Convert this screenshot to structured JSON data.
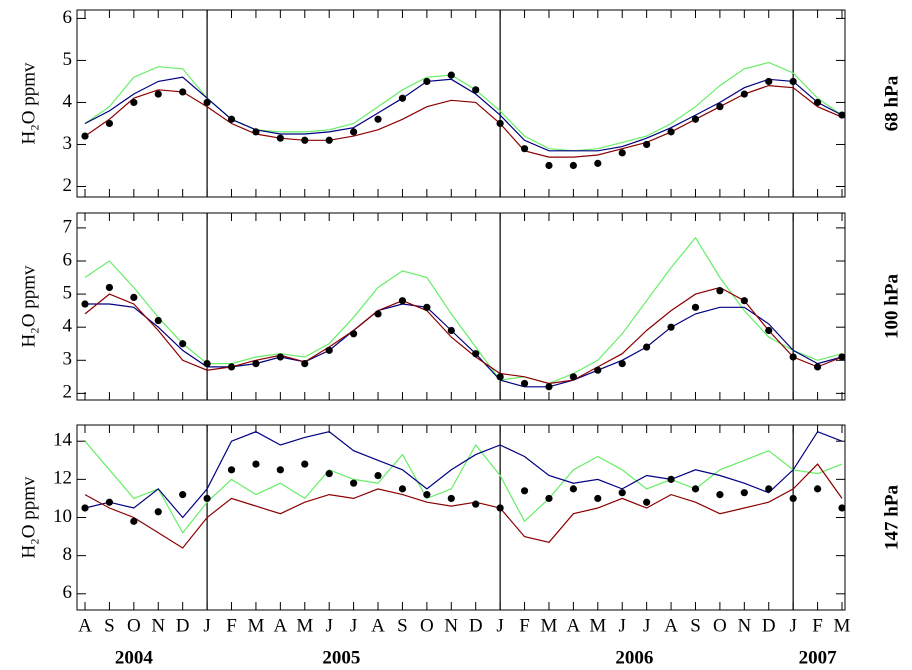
{
  "chart_data": {
    "type": "line",
    "x": [
      "2004-08",
      "2004-09",
      "2004-10",
      "2004-11",
      "2004-12",
      "2005-01",
      "2005-02",
      "2005-03",
      "2005-04",
      "2005-05",
      "2005-06",
      "2005-07",
      "2005-08",
      "2005-09",
      "2005-10",
      "2005-11",
      "2005-12",
      "2006-01",
      "2006-02",
      "2006-03",
      "2006-04",
      "2006-05",
      "2006-06",
      "2006-07",
      "2006-08",
      "2006-09",
      "2006-10",
      "2006-11",
      "2006-12",
      "2007-01",
      "2007-02",
      "2007-03"
    ],
    "xticks": [
      {
        "value": "2004-08",
        "label": "A"
      },
      {
        "value": "2004-09",
        "label": "S"
      },
      {
        "value": "2004-10",
        "label": "O"
      },
      {
        "value": "2004-11",
        "label": "N"
      },
      {
        "value": "2004-12",
        "label": "D"
      },
      {
        "value": "2005-01",
        "label": "J"
      },
      {
        "value": "2005-02",
        "label": "F"
      },
      {
        "value": "2005-03",
        "label": "M"
      },
      {
        "value": "2005-04",
        "label": "A"
      },
      {
        "value": "2005-05",
        "label": "M"
      },
      {
        "value": "2005-06",
        "label": "J"
      },
      {
        "value": "2005-07",
        "label": "J"
      },
      {
        "value": "2005-08",
        "label": "A"
      },
      {
        "value": "2005-09",
        "label": "S"
      },
      {
        "value": "2005-10",
        "label": "O"
      },
      {
        "value": "2005-11",
        "label": "N"
      },
      {
        "value": "2005-12",
        "label": "D"
      },
      {
        "value": "2006-01",
        "label": "J"
      },
      {
        "value": "2006-02",
        "label": "F"
      },
      {
        "value": "2006-03",
        "label": "M"
      },
      {
        "value": "2006-04",
        "label": "A"
      },
      {
        "value": "2006-05",
        "label": "M"
      },
      {
        "value": "2006-06",
        "label": "J"
      },
      {
        "value": "2006-07",
        "label": "J"
      },
      {
        "value": "2006-08",
        "label": "A"
      },
      {
        "value": "2006-09",
        "label": "S"
      },
      {
        "value": "2006-10",
        "label": "O"
      },
      {
        "value": "2006-11",
        "label": "N"
      },
      {
        "value": "2006-12",
        "label": "D"
      },
      {
        "value": "2007-01",
        "label": "J"
      },
      {
        "value": "2007-02",
        "label": "F"
      },
      {
        "value": "2007-03",
        "label": "M"
      }
    ],
    "years": [
      "2004",
      "2005",
      "2006",
      "2007"
    ],
    "panels": [
      {
        "label": "68 hPa",
        "y_label": "H₂O ppmv",
        "ylim": [
          1.75,
          6.2
        ],
        "yticks": [
          2,
          3,
          4,
          5,
          6
        ],
        "series": [
          {
            "color": "#66ee66",
            "style": "line",
            "values": [
              3.5,
              3.9,
              4.6,
              4.85,
              4.8,
              4.1,
              3.6,
              3.35,
              3.3,
              3.3,
              3.35,
              3.5,
              3.9,
              4.3,
              4.6,
              4.65,
              4.3,
              3.8,
              3.2,
              2.9,
              2.85,
              2.9,
              3.05,
              3.2,
              3.5,
              3.9,
              4.4,
              4.8,
              4.95,
              4.7,
              4.1,
              3.7
            ]
          },
          {
            "color": "#000080",
            "style": "line",
            "values": [
              3.5,
              3.8,
              4.2,
              4.5,
              4.6,
              4.1,
              3.6,
              3.35,
              3.25,
              3.25,
              3.3,
              3.4,
              3.75,
              4.1,
              4.5,
              4.55,
              4.2,
              3.7,
              3.1,
              2.85,
              2.85,
              2.85,
              2.95,
              3.15,
              3.4,
              3.7,
              4.0,
              4.35,
              4.55,
              4.5,
              4.0,
              3.7
            ]
          },
          {
            "color": "#8b0000",
            "style": "line",
            "values": [
              3.2,
              3.6,
              4.1,
              4.3,
              4.25,
              3.9,
              3.5,
              3.25,
              3.15,
              3.1,
              3.1,
              3.2,
              3.35,
              3.6,
              3.9,
              4.05,
              4.0,
              3.5,
              2.85,
              2.7,
              2.7,
              2.75,
              2.9,
              3.05,
              3.3,
              3.6,
              3.9,
              4.2,
              4.4,
              4.35,
              3.9,
              3.65
            ]
          },
          {
            "color": "#000000",
            "style": "dots",
            "values": [
              3.2,
              3.5,
              4.0,
              4.2,
              4.25,
              4.0,
              3.6,
              3.3,
              3.15,
              3.1,
              3.1,
              3.3,
              3.6,
              4.1,
              4.5,
              4.65,
              4.3,
              3.5,
              2.9,
              2.5,
              2.5,
              2.55,
              2.8,
              3.0,
              3.3,
              3.6,
              3.9,
              4.2,
              4.5,
              4.5,
              4.0,
              3.7
            ]
          }
        ]
      },
      {
        "label": "100 hPa",
        "y_label": "H₂O ppmv",
        "ylim": [
          1.8,
          7.45
        ],
        "yticks": [
          2,
          3,
          4,
          5,
          6,
          7
        ],
        "series": [
          {
            "color": "#66ee66",
            "style": "line",
            "values": [
              5.5,
              6.0,
              5.2,
              4.3,
              3.5,
              2.9,
              2.9,
              3.1,
              3.2,
              3.1,
              3.5,
              4.3,
              5.2,
              5.7,
              5.5,
              4.4,
              3.4,
              2.4,
              2.5,
              2.3,
              2.6,
              3.0,
              3.8,
              4.8,
              5.8,
              6.7,
              5.5,
              4.5,
              3.7,
              3.3,
              3.0,
              3.2
            ]
          },
          {
            "color": "#000080",
            "style": "line",
            "values": [
              4.7,
              4.7,
              4.6,
              4.0,
              3.3,
              2.8,
              2.8,
              2.9,
              3.1,
              2.95,
              3.3,
              3.9,
              4.5,
              4.7,
              4.6,
              3.9,
              3.2,
              2.4,
              2.2,
              2.2,
              2.4,
              2.7,
              3.0,
              3.4,
              4.0,
              4.4,
              4.6,
              4.6,
              4.1,
              3.3,
              2.9,
              3.1
            ]
          },
          {
            "color": "#8b0000",
            "style": "line",
            "values": [
              4.4,
              5.0,
              4.7,
              3.9,
              3.0,
              2.7,
              2.8,
              3.0,
              3.15,
              2.95,
              3.4,
              3.9,
              4.5,
              4.8,
              4.5,
              3.7,
              3.1,
              2.6,
              2.5,
              2.3,
              2.4,
              2.8,
              3.2,
              3.9,
              4.5,
              5.0,
              5.2,
              4.8,
              3.9,
              3.1,
              2.8,
              3.1
            ]
          },
          {
            "color": "#000000",
            "style": "dots",
            "values": [
              4.7,
              5.2,
              4.9,
              4.2,
              3.5,
              2.9,
              2.8,
              2.9,
              3.1,
              2.9,
              3.3,
              3.8,
              4.4,
              4.8,
              4.6,
              3.9,
              3.2,
              2.5,
              2.3,
              2.2,
              2.5,
              2.7,
              2.9,
              3.4,
              4.0,
              4.6,
              5.1,
              4.8,
              3.9,
              3.1,
              2.8,
              3.1
            ]
          }
        ]
      },
      {
        "label": "147 hPa",
        "y_label": "H₂O ppmv",
        "ylim": [
          5.15,
          14.85
        ],
        "yticks": [
          6,
          8,
          10,
          12,
          14
        ],
        "series": [
          {
            "color": "#66ee66",
            "style": "line",
            "values": [
              14.0,
              12.5,
              11.0,
              11.5,
              9.2,
              10.8,
              12.0,
              11.2,
              11.8,
              11.0,
              12.5,
              12.0,
              11.8,
              13.3,
              11.0,
              11.5,
              13.8,
              12.2,
              9.8,
              11.0,
              12.5,
              13.2,
              12.5,
              11.5,
              12.0,
              11.5,
              12.5,
              13.0,
              13.5,
              12.5,
              12.3,
              12.8
            ]
          },
          {
            "color": "#000080",
            "style": "line",
            "values": [
              10.5,
              10.8,
              10.5,
              11.5,
              10.0,
              11.5,
              14.0,
              14.5,
              13.8,
              14.2,
              14.5,
              13.5,
              13.0,
              12.5,
              11.5,
              12.5,
              13.3,
              13.8,
              13.2,
              12.2,
              11.8,
              12.0,
              11.5,
              12.2,
              12.0,
              12.5,
              12.2,
              11.8,
              11.3,
              12.5,
              14.5,
              14.0
            ]
          },
          {
            "color": "#8b0000",
            "style": "line",
            "values": [
              11.2,
              10.5,
              10.0,
              9.2,
              8.4,
              10.0,
              11.0,
              10.6,
              10.2,
              10.8,
              11.2,
              11.0,
              11.5,
              11.2,
              10.8,
              10.6,
              10.8,
              10.5,
              9.0,
              8.7,
              10.2,
              10.5,
              11.0,
              10.5,
              11.2,
              10.8,
              10.2,
              10.5,
              10.8,
              11.5,
              12.8,
              11.0
            ]
          },
          {
            "color": "#000000",
            "style": "dots",
            "values": [
              10.5,
              10.8,
              9.8,
              10.3,
              11.2,
              11.0,
              12.5,
              12.8,
              12.5,
              12.8,
              12.3,
              11.8,
              12.2,
              11.5,
              11.2,
              11.0,
              10.7,
              10.5,
              11.4,
              11.0,
              11.5,
              11.0,
              11.3,
              10.8,
              12.0,
              11.5,
              11.2,
              11.3,
              11.5,
              11.0,
              11.5,
              10.5
            ]
          }
        ]
      }
    ]
  }
}
